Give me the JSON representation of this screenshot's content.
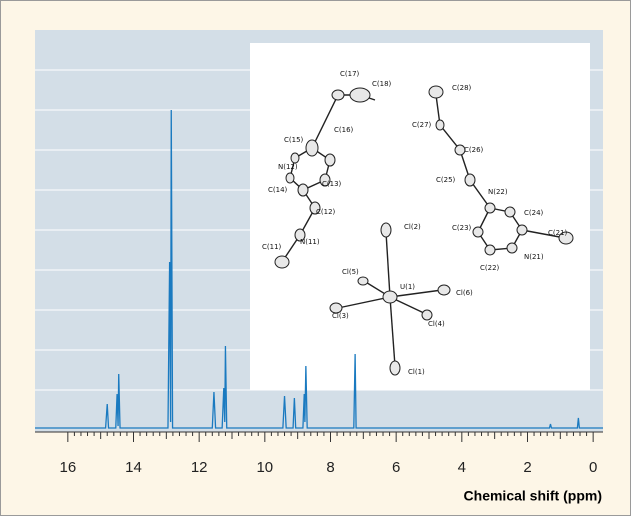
{
  "chart_data": {
    "type": "line",
    "x_label": "Chemical shift (ppm)",
    "xlim": [
      17,
      -0.3
    ],
    "xticks": [
      16,
      14,
      12,
      10,
      8,
      6,
      4,
      2,
      0
    ],
    "ylim": [
      0,
      10
    ],
    "yticks": [
      1,
      2,
      3,
      4,
      5,
      6,
      7,
      8,
      9
    ],
    "grid": true,
    "series": [
      {
        "color": "#1a7ac0",
        "x": [
          17,
          14.85,
          14.8,
          14.76,
          14.54,
          14.5,
          14.47,
          14.45,
          14.41,
          12.95,
          12.9,
          12.87,
          12.85,
          12.81,
          11.6,
          11.55,
          11.5,
          11.3,
          11.25,
          11.22,
          11.2,
          11.16,
          9.45,
          9.4,
          9.35,
          9.14,
          9.1,
          9.06,
          8.84,
          8.8,
          8.78,
          8.75,
          8.71,
          7.29,
          7.25,
          7.22,
          1.33,
          1.3,
          1.27,
          0.48,
          0.45,
          0.42,
          -0.3
        ],
        "values": [
          0.05,
          0.05,
          0.65,
          0.05,
          0.05,
          0.9,
          0.1,
          1.4,
          0.05,
          0.05,
          4.2,
          0.2,
          8.0,
          0.05,
          0.05,
          0.95,
          0.05,
          0.05,
          1.05,
          0.2,
          2.1,
          0.05,
          0.05,
          0.85,
          0.05,
          0.05,
          0.8,
          0.05,
          0.05,
          0.9,
          0.2,
          1.6,
          0.05,
          0.05,
          1.9,
          0.05,
          0.05,
          0.15,
          0.05,
          0.05,
          0.3,
          0.05,
          0.05
        ]
      }
    ],
    "inset_labels": [
      "C(17)",
      "C(18)",
      "C(15)",
      "C(16)",
      "N(12)",
      "C(13)",
      "C(14)",
      "C(12)",
      "N(11)",
      "C(11)",
      "C(28)",
      "C(27)",
      "C(26)",
      "C(25)",
      "N(22)",
      "C(24)",
      "C(23)",
      "C(21)",
      "N(21)",
      "C(22)",
      "Cl(2)",
      "Cl(5)",
      "U(1)",
      "Cl(6)",
      "Cl(3)",
      "Cl(4)",
      "Cl(1)"
    ]
  }
}
